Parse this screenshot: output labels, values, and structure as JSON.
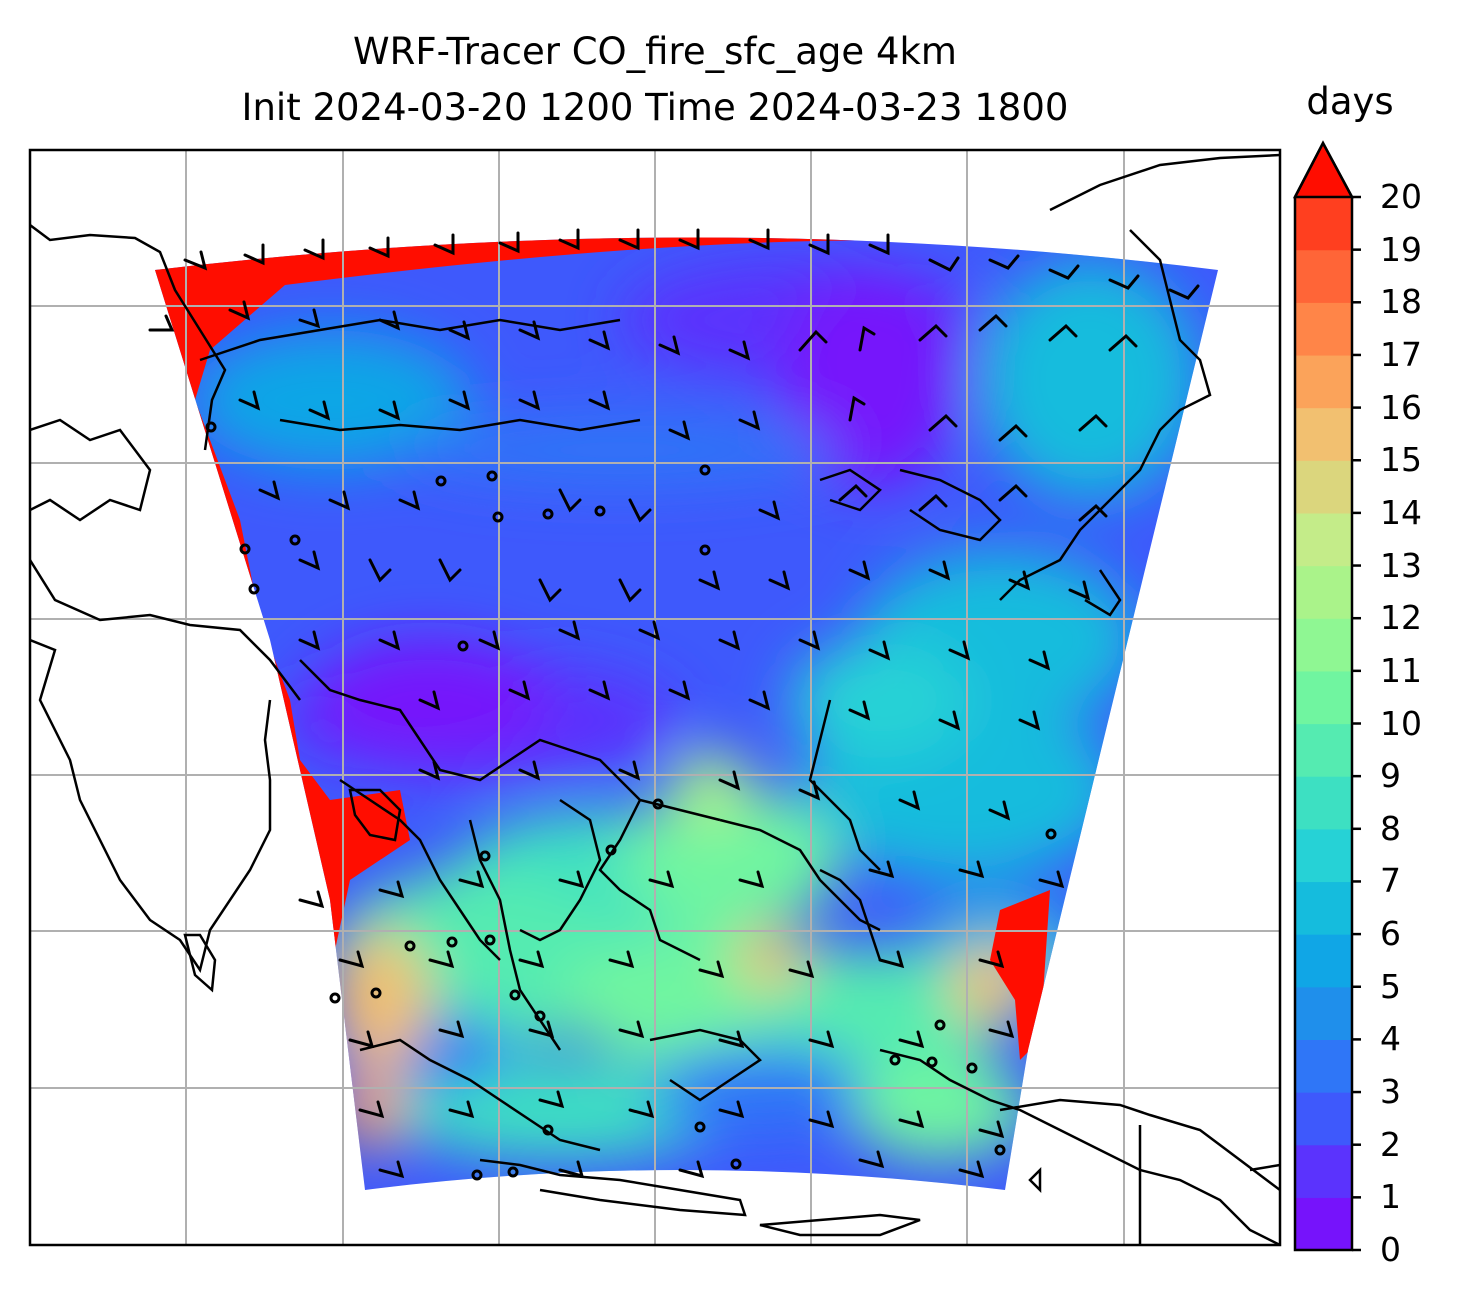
{
  "figure": {
    "title_line1": "WRF-Tracer CO_fire_sfc_age 4km",
    "title_line2": "Init 2024-03-20 1200 Time 2024-03-23 1800"
  },
  "colorbar": {
    "label": "days",
    "min": 0,
    "max": 20,
    "extend": "max",
    "ticks": [
      "0",
      "1",
      "2",
      "3",
      "4",
      "5",
      "6",
      "7",
      "8",
      "9",
      "10",
      "11",
      "12",
      "13",
      "14",
      "15",
      "16",
      "17",
      "18",
      "19",
      "20"
    ],
    "colors": [
      "#7613fb",
      "#5b33fd",
      "#3e59fc",
      "#2f76f7",
      "#1f8feb",
      "#10a6e6",
      "#15bcdd",
      "#26d2d6",
      "#3de0c2",
      "#55ebb1",
      "#70f5a0",
      "#8ff793",
      "#aaf38a",
      "#c4ec89",
      "#dbd67d",
      "#f2c070",
      "#fba35a",
      "#ff8548",
      "#ff6537",
      "#ff3f1f"
    ],
    "over_color": "#ff0d00"
  },
  "map": {
    "gridlines": true,
    "features": [
      "coastlines",
      "country-borders",
      "wind-barbs"
    ]
  }
}
